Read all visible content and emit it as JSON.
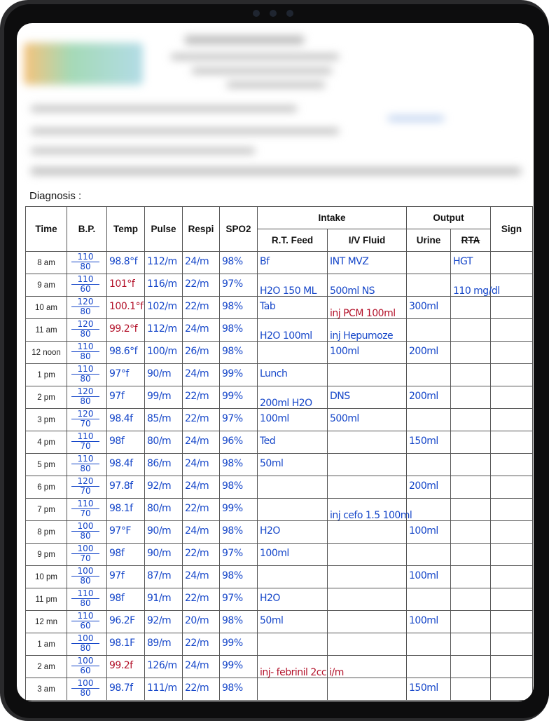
{
  "colors": {
    "ink_blue": "#1546c9",
    "ink_red": "#b3122a"
  },
  "diagnosis_label": "Diagnosis :",
  "headers": {
    "time": "Time",
    "bp": "B.P.",
    "temp": "Temp",
    "pulse": "Pulse",
    "respi": "Respi",
    "spo2": "SPO2",
    "intake": "Intake",
    "rt_feed": "R.T. Feed",
    "iv_fluid": "I/V Fluid",
    "output": "Output",
    "urine": "Urine",
    "rta": "RTA",
    "sign": "Sign"
  },
  "rows": [
    {
      "time": "8 am",
      "bp": [
        "110",
        "80"
      ],
      "temp": "98.8°f",
      "pulse": "112/m",
      "respi": "24/m",
      "spo2": "98%",
      "rt": "Bf",
      "iv": "INT MVZ",
      "urine": "",
      "rta": "HGT"
    },
    {
      "time": "9 am",
      "bp": [
        "110",
        "60"
      ],
      "temp": "101°f",
      "temp_red": true,
      "pulse": "116/m",
      "respi": "22/m",
      "spo2": "97%",
      "rt": "H2O 150 ML",
      "iv": "500ml NS",
      "urine": "",
      "rta": "110 mg/dl"
    },
    {
      "time": "10 am",
      "bp": [
        "120",
        "80"
      ],
      "temp": "100.1°f",
      "temp_red": true,
      "pulse": "102/m",
      "respi": "22/m",
      "spo2": "98%",
      "rt": "Tab",
      "iv": "inj PCM 100ml",
      "iv_red": true,
      "urine": "300ml",
      "rta": ""
    },
    {
      "time": "11 am",
      "bp": [
        "120",
        "80"
      ],
      "temp": "99.2°f",
      "temp_red": true,
      "pulse": "112/m",
      "respi": "24/m",
      "spo2": "98%",
      "rt": "H2O 100ml",
      "iv": "inj Hepumoze",
      "urine": "",
      "rta": ""
    },
    {
      "time": "12 noon",
      "bp": [
        "110",
        "80"
      ],
      "temp": "98.6°f",
      "pulse": "100/m",
      "respi": "26/m",
      "spo2": "98%",
      "rt": "",
      "iv": "100ml",
      "urine": "200ml",
      "rta": ""
    },
    {
      "time": "1 pm",
      "bp": [
        "110",
        "80"
      ],
      "temp": "97°f",
      "pulse": "90/m",
      "respi": "24/m",
      "spo2": "99%",
      "rt": "Lunch",
      "iv": "",
      "urine": "",
      "rta": ""
    },
    {
      "time": "2 pm",
      "bp": [
        "120",
        "80"
      ],
      "temp": "97f",
      "pulse": "99/m",
      "respi": "22/m",
      "spo2": "99%",
      "rt": "200ml H2O",
      "iv": "DNS",
      "urine": "200ml",
      "rta": ""
    },
    {
      "time": "3 pm",
      "bp": [
        "120",
        "70"
      ],
      "temp": "98.4f",
      "pulse": "85/m",
      "respi": "22/m",
      "spo2": "97%",
      "rt": "100ml",
      "iv": "500ml",
      "urine": "",
      "rta": ""
    },
    {
      "time": "4 pm",
      "bp": [
        "110",
        "70"
      ],
      "temp": "98f",
      "pulse": "80/m",
      "respi": "24/m",
      "spo2": "96%",
      "rt": "Ted",
      "iv": "",
      "urine": "150ml",
      "rta": ""
    },
    {
      "time": "5 pm",
      "bp": [
        "110",
        "80"
      ],
      "temp": "98.4f",
      "pulse": "86/m",
      "respi": "24/m",
      "spo2": "98%",
      "rt": "50ml",
      "iv": "",
      "urine": "",
      "rta": ""
    },
    {
      "time": "6 pm",
      "bp": [
        "120",
        "70"
      ],
      "temp": "97.8f",
      "pulse": "92/m",
      "respi": "24/m",
      "spo2": "98%",
      "rt": "",
      "iv": "",
      "urine": "200ml",
      "rta": ""
    },
    {
      "time": "7 pm",
      "bp": [
        "110",
        "70"
      ],
      "temp": "98.1f",
      "pulse": "80/m",
      "respi": "22/m",
      "spo2": "99%",
      "rt": "",
      "iv": "inj cefo 1.5 100ml",
      "urine": "",
      "rta": ""
    },
    {
      "time": "8 pm",
      "bp": [
        "100",
        "80"
      ],
      "temp": "97°F",
      "pulse": "90/m",
      "respi": "24/m",
      "spo2": "98%",
      "rt": "H2O",
      "iv": "",
      "urine": "100ml",
      "rta": ""
    },
    {
      "time": "9 pm",
      "bp": [
        "100",
        "70"
      ],
      "temp": "98f",
      "pulse": "90/m",
      "respi": "22/m",
      "spo2": "97%",
      "rt": "100ml",
      "iv": "",
      "urine": "",
      "rta": ""
    },
    {
      "time": "10 pm",
      "bp": [
        "100",
        "80"
      ],
      "temp": "97f",
      "pulse": "87/m",
      "respi": "24/m",
      "spo2": "98%",
      "rt": "",
      "iv": "",
      "urine": "100ml",
      "rta": ""
    },
    {
      "time": "11 pm",
      "bp": [
        "110",
        "80"
      ],
      "temp": "98f",
      "pulse": "91/m",
      "respi": "22/m",
      "spo2": "97%",
      "rt": "H2O",
      "iv": "",
      "urine": "",
      "rta": ""
    },
    {
      "time": "12 mn",
      "bp": [
        "110",
        "60"
      ],
      "temp": "96.2F",
      "pulse": "92/m",
      "respi": "20/m",
      "spo2": "98%",
      "rt": "50ml",
      "iv": "",
      "urine": "100ml",
      "rta": ""
    },
    {
      "time": "1 am",
      "bp": [
        "100",
        "80"
      ],
      "temp": "98.1F",
      "pulse": "89/m",
      "respi": "22/m",
      "spo2": "99%",
      "rt": "",
      "iv": "",
      "urine": "",
      "rta": ""
    },
    {
      "time": "2 am",
      "bp": [
        "100",
        "60"
      ],
      "temp": "99.2f",
      "temp_red": true,
      "pulse": "126/m",
      "respi": "24/m",
      "spo2": "99%",
      "rt": "inj- febrinil 2cc i/m",
      "rt_red": true,
      "iv": "",
      "urine": "",
      "rta": ""
    },
    {
      "time": "3 am",
      "bp": [
        "100",
        "80"
      ],
      "temp": "98.7f",
      "pulse": "111/m",
      "respi": "22/m",
      "spo2": "98%",
      "rt": "",
      "iv": "",
      "urine": "150ml",
      "rta": ""
    }
  ]
}
